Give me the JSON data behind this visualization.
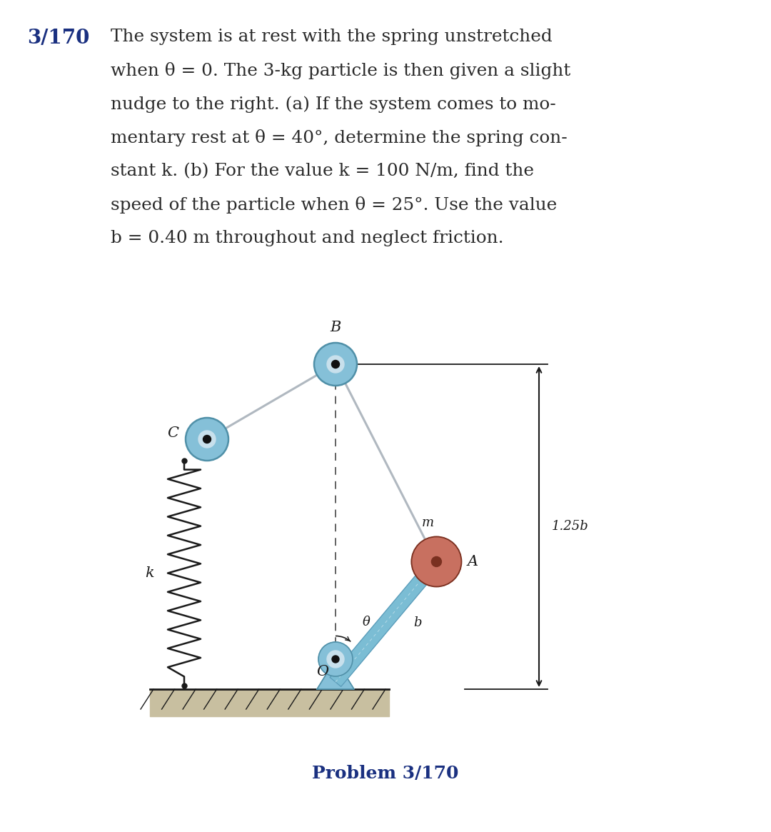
{
  "title_number": "3/170",
  "problem_line1": "The system is at rest with the spring unstretched",
  "problem_line2": "when θ = 0. The 3-kg particle is then given a slight",
  "problem_line3": "nudge to the right. (a) If the system comes to mo-",
  "problem_line4": "mentary rest at θ = 40°, determine the spring con-",
  "problem_line5": "stant k. (b) For the value k = 100 N/m, find the",
  "problem_line6": "speed of the particle when θ = 25°. Use the value",
  "problem_line7": "b = 0.40 m throughout and neglect friction.",
  "caption": "Problem 3/170",
  "bg_color": "#ffffff",
  "text_color": "#2a2a2a",
  "title_bold_color": "#1a3080",
  "caption_color": "#1a3080",
  "rod_color": "#7bbdd4",
  "rod_edge_color": "#5a9ab8",
  "rope_color": "#b0b8c0",
  "spring_color": "#1a1a1a",
  "pulley_fill": "#85c0d8",
  "pulley_edge": "#5090a8",
  "pulley_inner_fill": "#c8e0ec",
  "pulley_dot": "#111111",
  "particle_fill": "#c87060",
  "particle_edge": "#7a3020",
  "particle_dot": "#7a3020",
  "ground_fill": "#c8bfa0",
  "ground_line": "#1a1a1a",
  "pin_fill": "#85c0d8",
  "pin_edge": "#5090a8",
  "dim_color": "#1a1a1a",
  "label_color": "#1a1a1a",
  "dashed_color": "#555555"
}
